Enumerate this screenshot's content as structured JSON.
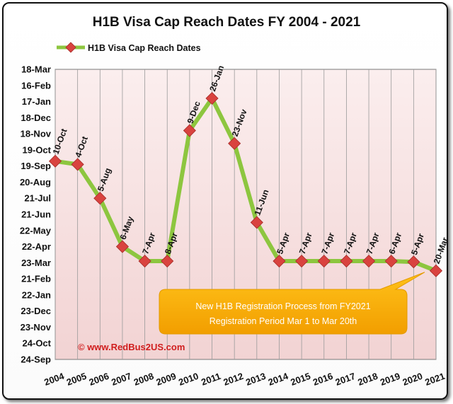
{
  "chart_data": {
    "type": "line",
    "title": "H1B Visa  Cap Reach Dates FY 2004 - 2021",
    "legend": {
      "label": "H1B Visa Cap Reach Dates",
      "placement": "top-left"
    },
    "y_axis": {
      "tick_labels": [
        "18-Mar",
        "16-Feb",
        "17-Jan",
        "18-Dec",
        "18-Nov",
        "19-Oct",
        "19-Sep",
        "20-Aug",
        "21-Jul",
        "21-Jun",
        "22-May",
        "22-Apr",
        "23-Mar",
        "21-Feb",
        "22-Jan",
        "23-Dec",
        "23-Nov",
        "24-Oct",
        "24-Sep"
      ]
    },
    "x": [
      "2004",
      "2005",
      "2006",
      "2007",
      "2008",
      "2009",
      "2010",
      "2011",
      "2012",
      "2013",
      "2014",
      "2015",
      "2016",
      "2017",
      "2018",
      "2019",
      "2020",
      "2021"
    ],
    "series": [
      {
        "name": "H1B Visa Cap Reach Dates",
        "color": "#8dc63f",
        "marker_color": "#d9433f",
        "values": [
          5.7,
          5.9,
          8.0,
          11.0,
          11.9,
          11.9,
          3.8,
          1.8,
          4.6,
          9.5,
          11.9,
          11.9,
          11.9,
          11.9,
          11.9,
          11.9,
          11.95,
          12.5
        ],
        "labels": [
          "10-Oct",
          "4-Oct",
          "5-Aug",
          "6-May",
          "7-Apr",
          "8-Apr",
          "9-Dec",
          "26-Jan",
          "23-Nov",
          "11-Jun",
          "5-Apr",
          "7-Apr",
          "7-Apr",
          "7-Apr",
          "7-Apr",
          "6-Apr",
          "5-Apr",
          "20-Mar"
        ]
      }
    ],
    "grid": {
      "horizontal": false,
      "vertical": true
    },
    "plot_background": "#f4d8d8",
    "annotations": {
      "callout_line1": "New H1B Registration Process from FY2021",
      "callout_line2": "Registration Period Mar 1 to Mar 20th",
      "callout_color": "#f7b500",
      "credit": "© www.RedBus2US.com"
    }
  }
}
